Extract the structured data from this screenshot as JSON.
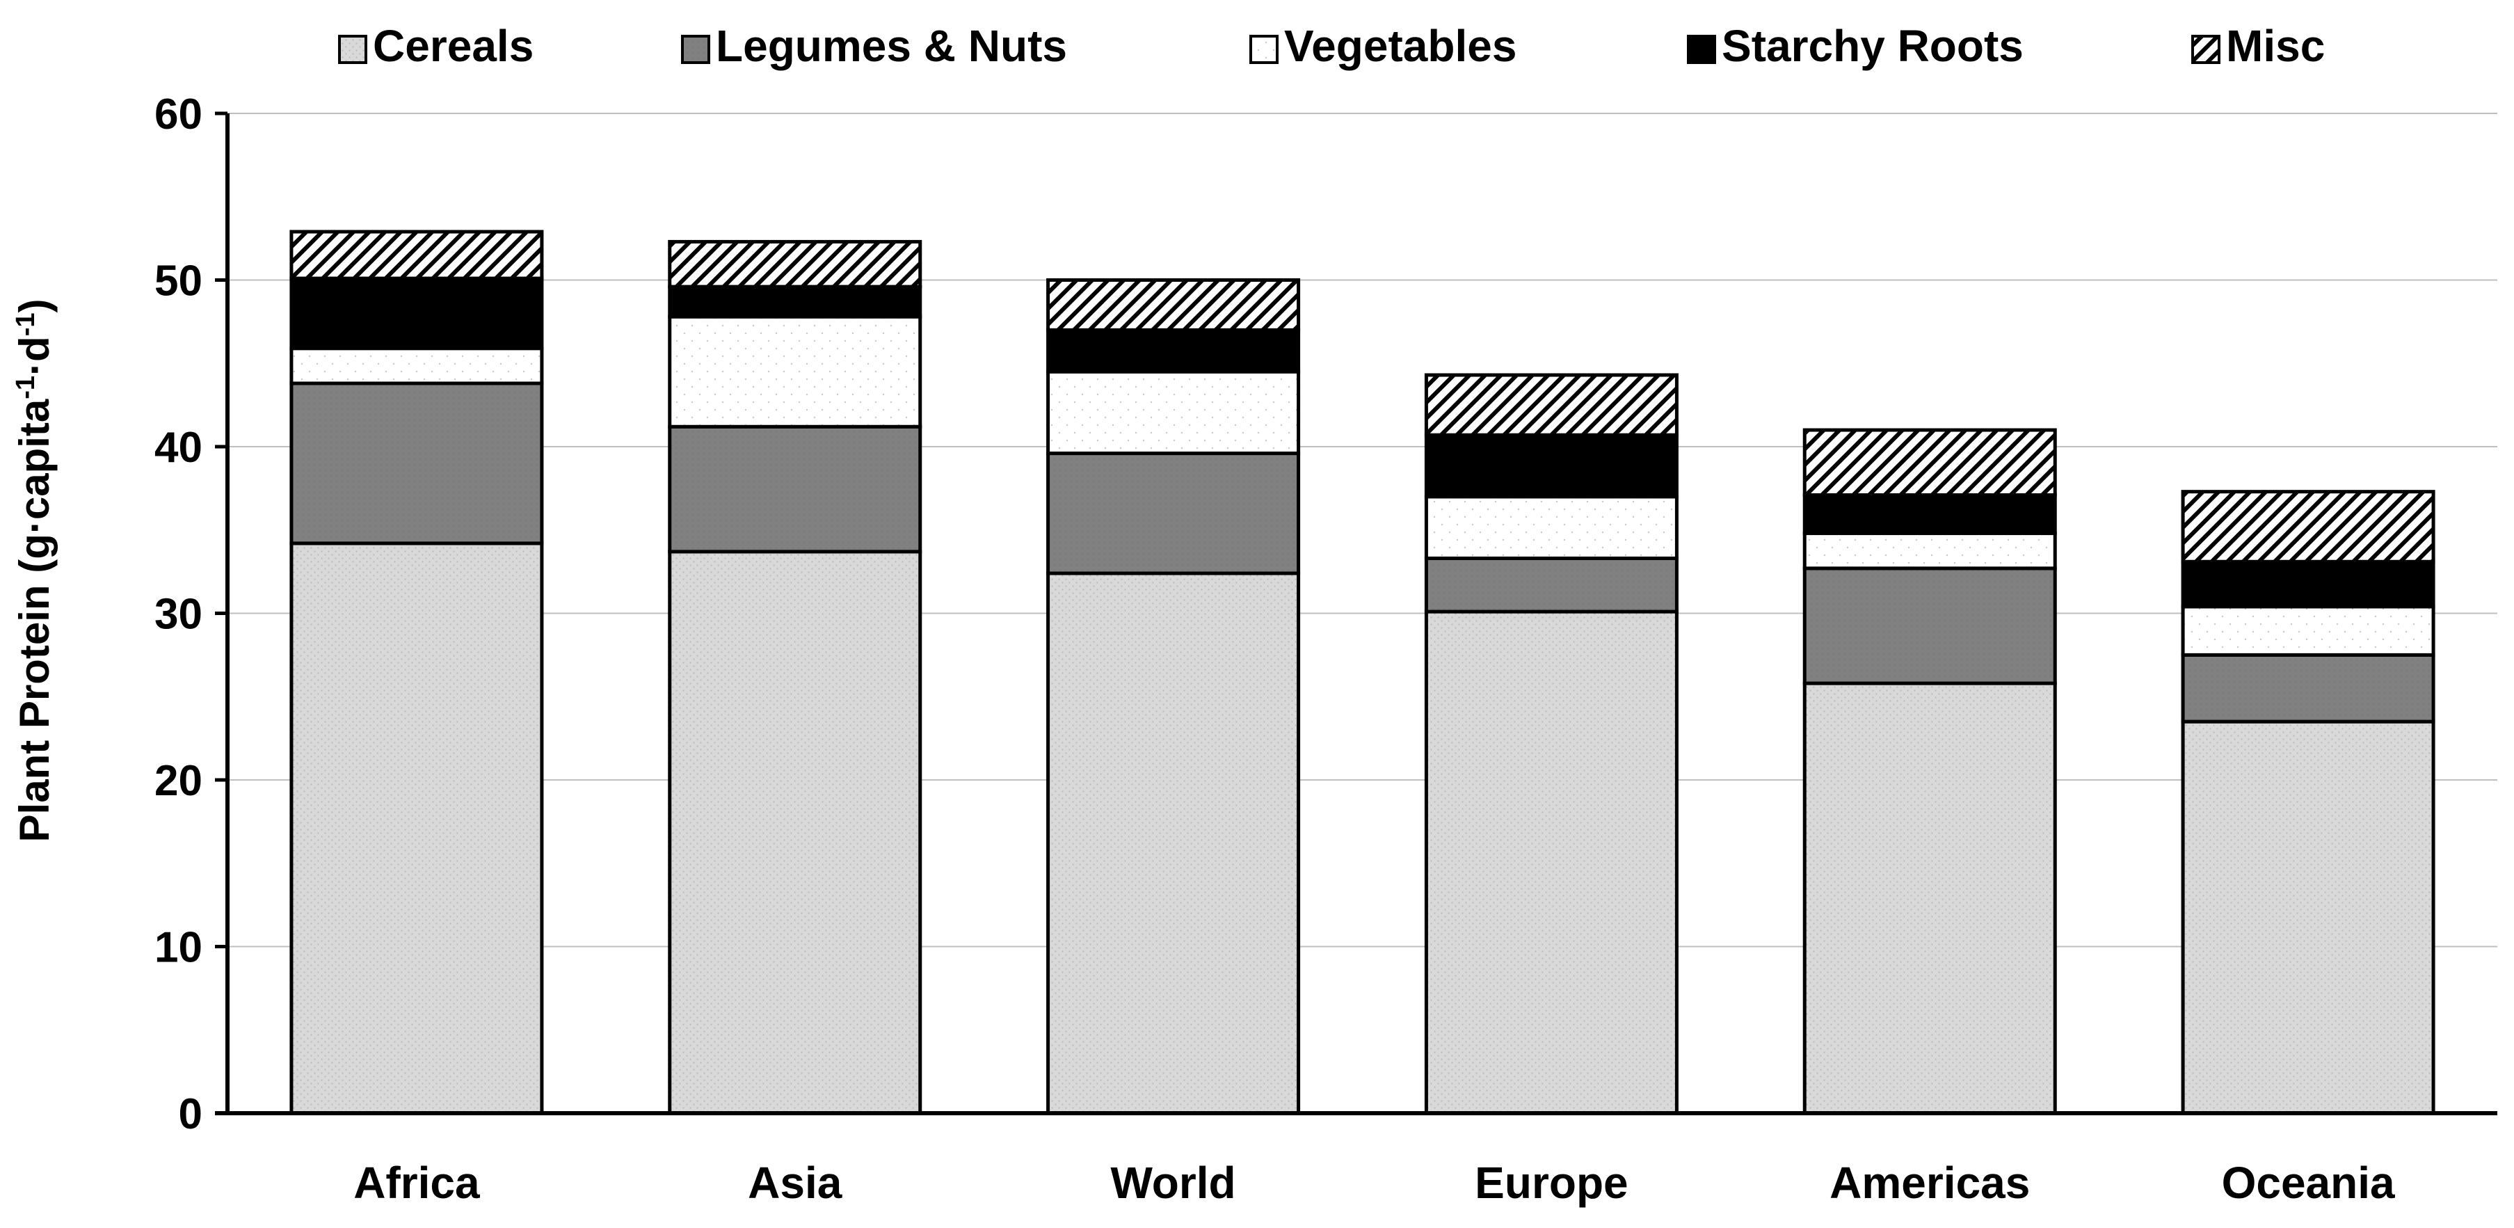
{
  "chart_data": {
    "type": "bar",
    "stacked": true,
    "ylabel": "Plant Protein (g·capita-1·d-1)",
    "ylabel_parts": [
      "Plant Protein (g·capita",
      "-1",
      "·d",
      "-1",
      ")"
    ],
    "ylim": [
      0,
      60
    ],
    "yticks": [
      0,
      10,
      20,
      30,
      40,
      50,
      60
    ],
    "gridlines": true,
    "legend_position": "top",
    "categories": [
      "Africa",
      "Asia",
      "World",
      "Europe",
      "Americas",
      "Oceania"
    ],
    "series": [
      {
        "name": "Cereals",
        "pattern": "light-gray-dotted",
        "color": "#d9d9d9",
        "values": [
          34.2,
          33.7,
          32.4,
          30.1,
          25.8,
          23.5
        ]
      },
      {
        "name": "Legumes & Nuts",
        "pattern": "gray",
        "color": "#808080",
        "values": [
          9.6,
          7.5,
          7.2,
          3.2,
          6.9,
          4.0
        ]
      },
      {
        "name": "Vegetables",
        "pattern": "white-dotted",
        "color": "#ffffff",
        "values": [
          2.1,
          6.6,
          4.9,
          3.7,
          2.1,
          2.9
        ]
      },
      {
        "name": "Starchy Roots",
        "pattern": "black",
        "color": "#000000",
        "values": [
          4.2,
          1.8,
          2.5,
          3.7,
          2.3,
          2.7
        ]
      },
      {
        "name": "Misc",
        "pattern": "diagonal-hatch",
        "color": "#ffffff",
        "values": [
          2.8,
          2.7,
          3.0,
          3.6,
          3.9,
          4.2
        ]
      }
    ]
  }
}
